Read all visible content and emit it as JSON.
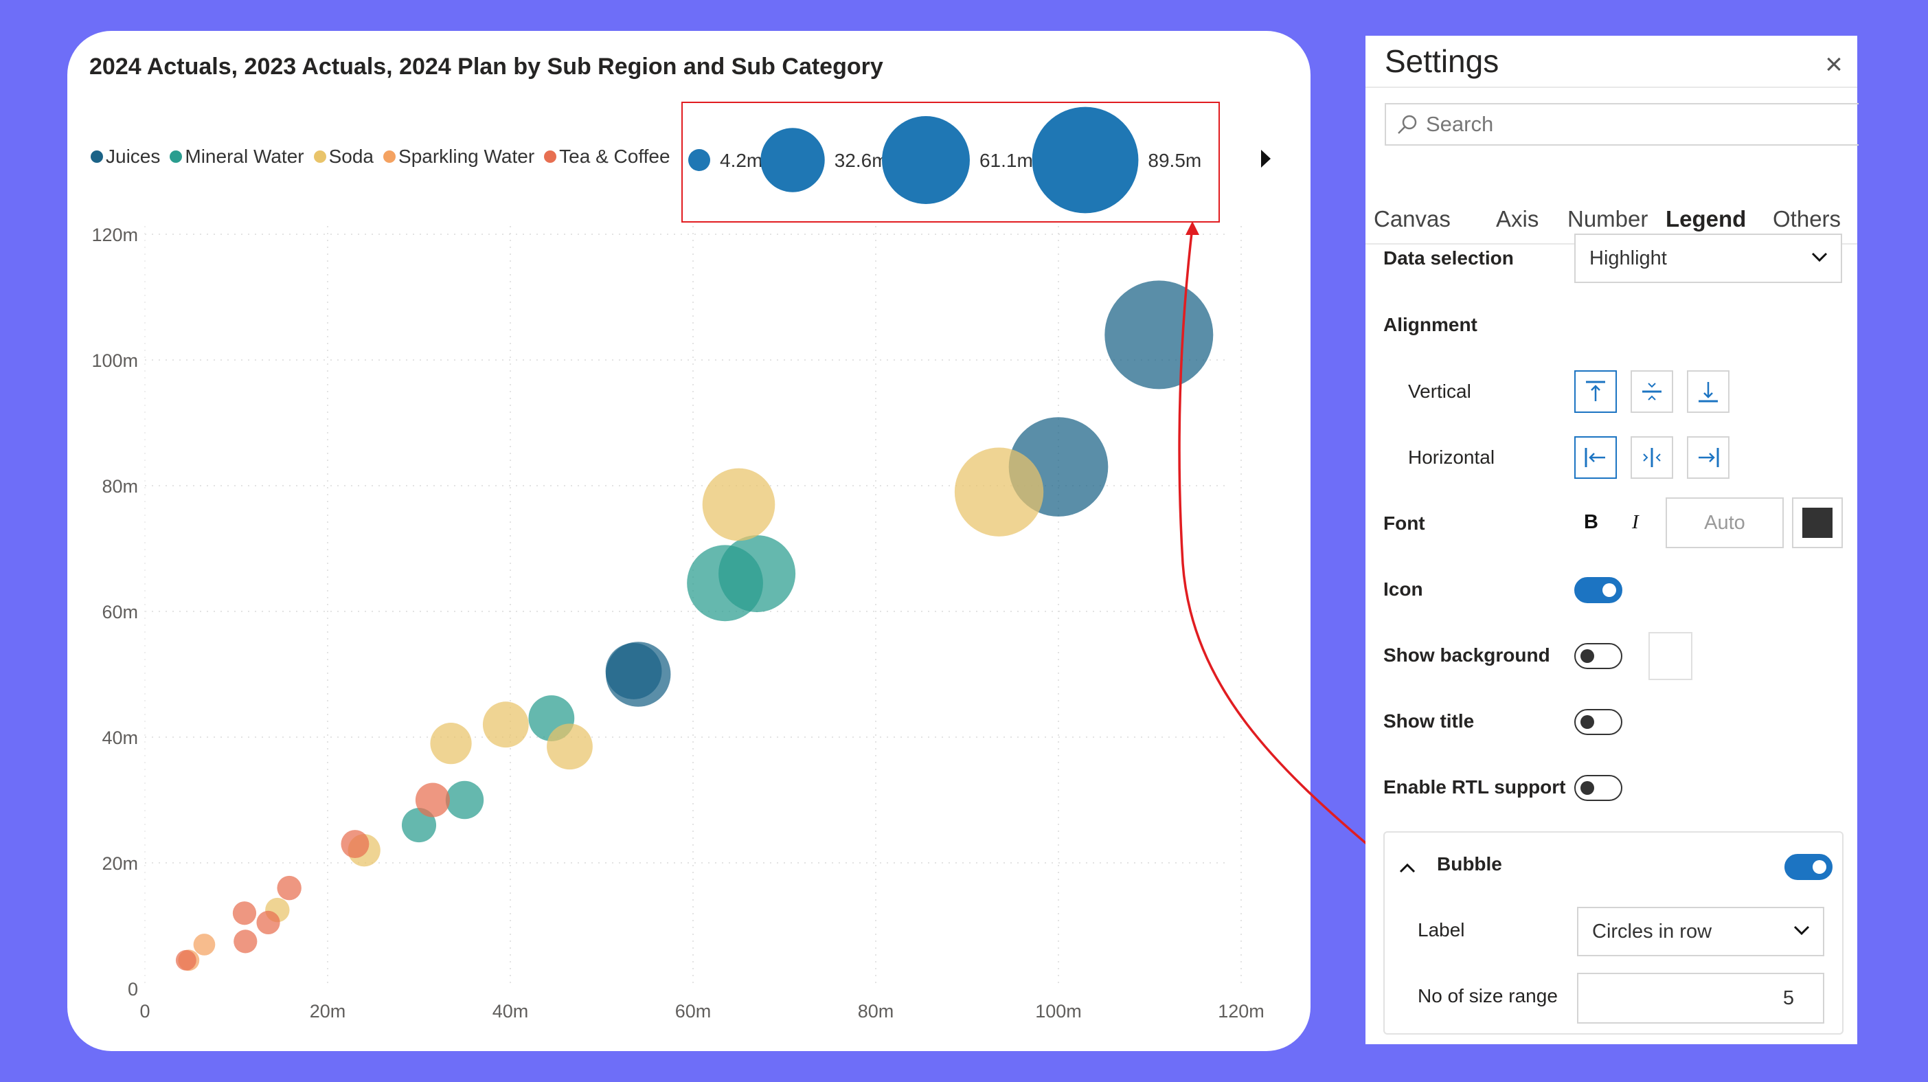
{
  "chart": {
    "title": "2024 Actuals, 2023 Actuals, 2024 Plan by Sub Region and Sub Category",
    "legend": [
      {
        "label": "Juices",
        "color": "#1b6387"
      },
      {
        "label": "Mineral Water",
        "color": "#2a9d8f"
      },
      {
        "label": "Soda",
        "color": "#e9c46a"
      },
      {
        "label": "Sparkling Water",
        "color": "#f4a261"
      },
      {
        "label": "Tea & Coffee",
        "color": "#e76f51"
      }
    ],
    "size_legend": [
      "4.2m",
      "32.6m",
      "61.1m",
      "89.5m"
    ],
    "bubble_color": "#1f77b4",
    "callout_color": "#e11d21"
  },
  "chart_data": {
    "type": "scatter",
    "title": "2024 Actuals, 2023 Actuals, 2024 Plan by Sub Region and Sub Category",
    "x_ticks": [
      "0",
      "20m",
      "40m",
      "60m",
      "80m",
      "100m",
      "120m"
    ],
    "y_ticks": [
      "0",
      "20m",
      "40m",
      "60m",
      "80m",
      "100m",
      "120m"
    ],
    "xlim": [
      0,
      120
    ],
    "ylim": [
      0,
      120
    ],
    "units": "m",
    "grid": true,
    "size_legend_values": [
      4.2,
      32.6,
      61.1,
      89.5
    ],
    "series": [
      {
        "name": "Juices",
        "color": "#1b6387",
        "points": [
          {
            "x": 111,
            "y": 104,
            "size": 89.5
          },
          {
            "x": 100,
            "y": 83,
            "size": 75
          },
          {
            "x": 54,
            "y": 50,
            "size": 32
          },
          {
            "x": 53.5,
            "y": 50.5,
            "size": 24
          }
        ]
      },
      {
        "name": "Mineral Water",
        "color": "#2a9d8f",
        "points": [
          {
            "x": 67,
            "y": 66,
            "size": 45
          },
          {
            "x": 63.5,
            "y": 64.5,
            "size": 44
          },
          {
            "x": 44.5,
            "y": 43,
            "size": 16
          },
          {
            "x": 35,
            "y": 30,
            "size": 11
          },
          {
            "x": 30,
            "y": 26,
            "size": 9
          }
        ]
      },
      {
        "name": "Soda",
        "color": "#e9c46a",
        "points": [
          {
            "x": 93.5,
            "y": 79,
            "size": 60
          },
          {
            "x": 65,
            "y": 77,
            "size": 40
          },
          {
            "x": 39.5,
            "y": 42,
            "size": 16
          },
          {
            "x": 46.5,
            "y": 38.5,
            "size": 16
          },
          {
            "x": 33.5,
            "y": 39,
            "size": 13
          },
          {
            "x": 24,
            "y": 22,
            "size": 8
          },
          {
            "x": 14.5,
            "y": 12.5,
            "size": 4.5
          }
        ]
      },
      {
        "name": "Sparkling Water",
        "color": "#f4a261",
        "points": [
          {
            "x": 6.5,
            "y": 7,
            "size": 3.6
          },
          {
            "x": 4.8,
            "y": 4.5,
            "size": 3.4
          }
        ]
      },
      {
        "name": "Tea & Coffee",
        "color": "#e76f51",
        "points": [
          {
            "x": 31.5,
            "y": 30,
            "size": 9
          },
          {
            "x": 23,
            "y": 23,
            "size": 6
          },
          {
            "x": 15.8,
            "y": 16,
            "size": 4.5
          },
          {
            "x": 10.9,
            "y": 12,
            "size": 4.2
          },
          {
            "x": 13.5,
            "y": 10.5,
            "size": 4.2
          },
          {
            "x": 11,
            "y": 7.5,
            "size": 4.2
          },
          {
            "x": 4.5,
            "y": 4.5,
            "size": 3.2
          }
        ]
      }
    ]
  },
  "settings": {
    "title": "Settings",
    "search_placeholder": "Search",
    "tabs": [
      "Canvas",
      "Axis",
      "Number",
      "Legend",
      "Others"
    ],
    "active_tab": "Legend",
    "data_selection_label": "Data selection",
    "data_selection_value": "Highlight",
    "alignment_label": "Alignment",
    "vertical_label": "Vertical",
    "horizontal_label": "Horizontal",
    "font_label": "Font",
    "font_bold": "B",
    "font_italic": "I",
    "font_size_value": "Auto",
    "font_color": "#333333",
    "icon_label": "Icon",
    "icon_on": true,
    "show_background_label": "Show background",
    "show_background_on": false,
    "show_title_label": "Show title",
    "show_title_on": false,
    "rtl_label": "Enable RTL support",
    "rtl_on": false,
    "bubble_label": "Bubble",
    "bubble_on": true,
    "label_label": "Label",
    "label_value": "Circles in row",
    "size_range_label": "No of size range",
    "size_range_value": "5"
  }
}
